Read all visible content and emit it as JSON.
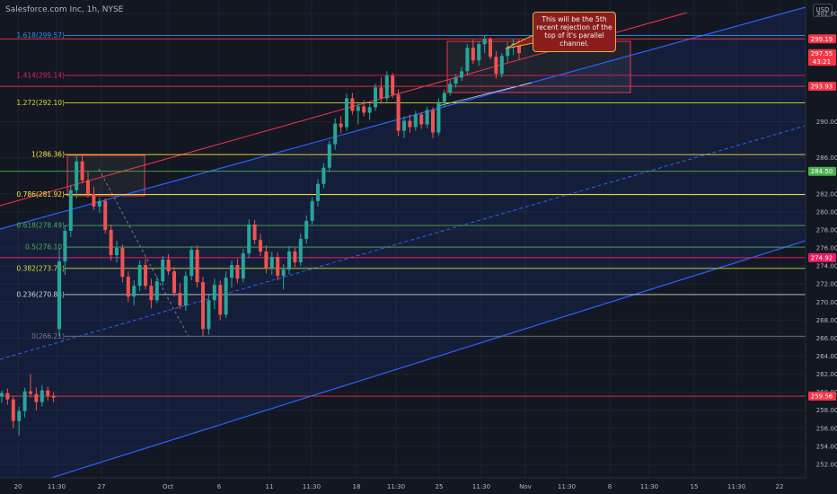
{
  "title": "Salesforce.com Inc, 1h, NYSE",
  "currency": "USD",
  "note": "This will be the 5th recent rejection of the top of it's parallel channel.",
  "colors": {
    "bg": "#131722",
    "grid": "#1e222d",
    "up": "#26a69a",
    "down": "#ef5350",
    "channel_blue": "#2962ff",
    "channel_red": "#f23645",
    "fill_blue": "rgba(41,98,255,0.10)",
    "axis_text": "#b2b5be"
  },
  "chart_data": {
    "type": "candlestick",
    "y_ticks": [
      252,
      254,
      256,
      258,
      260,
      262,
      264,
      266,
      268,
      270,
      272,
      274,
      276,
      278,
      280,
      282,
      286,
      290,
      302
    ],
    "x_ticks": [
      "20",
      "11:30",
      "27",
      "Oct",
      "6",
      "11",
      "11:30",
      "18",
      "11:30",
      "25",
      "11:30",
      "Nov",
      "11:30",
      "8",
      "11:30",
      "15",
      "11:30",
      "22"
    ],
    "ylim": [
      250.5,
      303.5
    ],
    "price_labels": [
      {
        "text": "299.19",
        "value": 299.19,
        "color": "#f23645"
      },
      {
        "text": "297.55",
        "value": 297.55,
        "color": "#f23645"
      },
      {
        "text": "43:21",
        "value": 296.7,
        "color": "#f23645"
      },
      {
        "text": "293.93",
        "value": 293.93,
        "color": "#f23645"
      },
      {
        "text": "284.50",
        "value": 284.5,
        "color": "#4caf50"
      },
      {
        "text": "274.92",
        "value": 274.92,
        "color": "#e91e63"
      },
      {
        "text": "259.56",
        "value": 259.56,
        "color": "#f23645"
      }
    ],
    "fib_levels": [
      {
        "label": "1.618(299.57)",
        "value": 299.57,
        "color": "#2196f3"
      },
      {
        "label": "1.414(295.14)",
        "value": 295.14,
        "color": "#e91e63"
      },
      {
        "label": "1.272(292.10)",
        "value": 292.1,
        "color": "#cddc39"
      },
      {
        "label": "1(286.36)",
        "value": 286.36,
        "color": "#ffeb3b"
      },
      {
        "label": "0.786(281.92)",
        "value": 281.92,
        "color": "#ffeb3b"
      },
      {
        "label": "0.618(278.49)",
        "value": 278.49,
        "color": "#4caf50"
      },
      {
        "label": "0.5(276.10)",
        "value": 276.1,
        "color": "#4caf50"
      },
      {
        "label": "0.382(273.73)",
        "value": 273.73,
        "color": "#cddc39"
      },
      {
        "label": "0.236(270.83)",
        "value": 270.83,
        "color": "#d1d4dc"
      },
      {
        "label": "0(266.21)",
        "value": 266.21,
        "color": "#787b86"
      }
    ],
    "horizontal_levels": [
      {
        "value": 284.5,
        "color": "#4caf50"
      },
      {
        "value": 274.92,
        "color": "#e91e63"
      },
      {
        "value": 259.56,
        "color": "#f23645"
      },
      {
        "value": 293.93,
        "color": "#f23645"
      },
      {
        "value": 299.19,
        "color": "#f23645"
      }
    ],
    "candles": [
      [
        259.5,
        260.2,
        258.8,
        259.9
      ],
      [
        259.9,
        260.4,
        258.6,
        259.2
      ],
      [
        259.2,
        259.6,
        256.0,
        256.8
      ],
      [
        256.8,
        258.4,
        255.2,
        257.9
      ],
      [
        257.9,
        260.5,
        257.2,
        260.1
      ],
      [
        260.1,
        262.0,
        259.4,
        259.8
      ],
      [
        259.8,
        260.5,
        258.0,
        258.9
      ],
      [
        258.9,
        260.8,
        258.4,
        260.2
      ],
      [
        260.2,
        260.6,
        259.1,
        259.6
      ],
      [
        259.6,
        260.0,
        258.9,
        259.4
      ],
      [
        267.0,
        276.0,
        266.2,
        274.5
      ],
      [
        274.5,
        278.5,
        273.0,
        277.9
      ],
      [
        277.9,
        283.0,
        277.2,
        282.4
      ],
      [
        282.4,
        286.4,
        281.5,
        285.6
      ],
      [
        285.6,
        286.3,
        283.2,
        283.5
      ],
      [
        283.5,
        284.5,
        281.6,
        282.0
      ],
      [
        282.0,
        282.8,
        280.2,
        280.6
      ],
      [
        280.6,
        281.6,
        279.9,
        281.2
      ],
      [
        281.2,
        281.5,
        277.6,
        278.0
      ],
      [
        278.0,
        278.6,
        274.6,
        275.2
      ],
      [
        275.2,
        276.8,
        274.4,
        276.0
      ],
      [
        276.0,
        276.4,
        272.2,
        272.8
      ],
      [
        272.8,
        273.4,
        270.0,
        270.6
      ],
      [
        270.6,
        272.4,
        269.6,
        271.8
      ],
      [
        271.8,
        274.6,
        271.2,
        274.1
      ],
      [
        274.1,
        274.8,
        271.4,
        271.8
      ],
      [
        271.8,
        272.6,
        269.3,
        270.2
      ],
      [
        270.2,
        272.9,
        269.9,
        272.3
      ],
      [
        272.3,
        275.1,
        271.8,
        274.7
      ],
      [
        274.7,
        275.3,
        273.0,
        273.4
      ],
      [
        273.4,
        273.9,
        270.6,
        271.0
      ],
      [
        271.0,
        272.1,
        269.2,
        269.6
      ],
      [
        269.6,
        273.4,
        269.0,
        272.9
      ],
      [
        272.9,
        276.2,
        272.4,
        275.8
      ],
      [
        275.8,
        276.3,
        271.6,
        272.2
      ],
      [
        272.2,
        272.8,
        266.2,
        267.0
      ],
      [
        267.0,
        270.8,
        266.4,
        270.2
      ],
      [
        270.2,
        272.6,
        269.2,
        271.9
      ],
      [
        271.9,
        272.4,
        268.0,
        268.6
      ],
      [
        268.6,
        273.4,
        268.2,
        272.7
      ],
      [
        272.7,
        274.6,
        271.6,
        274.1
      ],
      [
        274.1,
        274.8,
        272.1,
        272.6
      ],
      [
        272.6,
        275.9,
        272.2,
        275.4
      ],
      [
        275.4,
        279.2,
        274.9,
        278.6
      ],
      [
        278.6,
        279.1,
        276.4,
        276.9
      ],
      [
        276.9,
        277.6,
        275.1,
        275.6
      ],
      [
        275.6,
        276.3,
        273.2,
        273.8
      ],
      [
        273.8,
        275.6,
        273.0,
        275.0
      ],
      [
        275.0,
        275.5,
        272.4,
        272.9
      ],
      [
        272.9,
        274.2,
        271.4,
        273.6
      ],
      [
        273.6,
        276.2,
        273.1,
        275.6
      ],
      [
        275.6,
        276.0,
        273.9,
        274.4
      ],
      [
        274.4,
        277.6,
        274.0,
        277.0
      ],
      [
        277.0,
        279.6,
        276.5,
        279.0
      ],
      [
        279.0,
        281.6,
        278.6,
        281.2
      ],
      [
        281.2,
        283.6,
        280.6,
        283.1
      ],
      [
        283.1,
        285.4,
        282.6,
        284.9
      ],
      [
        284.9,
        287.9,
        284.4,
        287.5
      ],
      [
        287.5,
        290.4,
        286.9,
        289.8
      ],
      [
        289.8,
        290.6,
        288.7,
        289.4
      ],
      [
        289.4,
        293.1,
        289.0,
        292.6
      ],
      [
        292.6,
        293.2,
        290.8,
        291.2
      ],
      [
        291.2,
        292.2,
        289.7,
        291.7
      ],
      [
        291.7,
        292.4,
        290.6,
        291.0
      ],
      [
        291.0,
        292.1,
        290.2,
        291.6
      ],
      [
        291.6,
        294.2,
        291.2,
        293.8
      ],
      [
        293.8,
        294.9,
        292.0,
        292.6
      ],
      [
        292.6,
        295.6,
        292.2,
        295.1
      ],
      [
        295.1,
        295.4,
        292.6,
        293.0
      ],
      [
        293.0,
        293.6,
        288.4,
        289.0
      ],
      [
        289.0,
        290.6,
        288.2,
        290.1
      ],
      [
        290.1,
        290.8,
        288.8,
        289.4
      ],
      [
        289.4,
        291.2,
        289.0,
        290.8
      ],
      [
        290.8,
        291.1,
        289.2,
        289.7
      ],
      [
        289.7,
        291.7,
        289.3,
        291.3
      ],
      [
        291.3,
        291.6,
        288.2,
        288.8
      ],
      [
        288.8,
        292.6,
        288.5,
        292.2
      ],
      [
        292.2,
        293.6,
        291.6,
        293.2
      ],
      [
        293.2,
        294.6,
        292.9,
        294.2
      ],
      [
        294.2,
        295.3,
        293.8,
        294.9
      ],
      [
        294.9,
        296.1,
        294.5,
        295.6
      ],
      [
        295.6,
        298.6,
        295.2,
        298.2
      ],
      [
        298.2,
        299.1,
        296.4,
        296.8
      ],
      [
        296.8,
        298.9,
        296.2,
        298.6
      ],
      [
        298.6,
        299.6,
        297.6,
        299.2
      ],
      [
        299.2,
        299.4,
        296.9,
        297.2
      ],
      [
        297.2,
        297.8,
        294.8,
        295.3
      ],
      [
        295.3,
        297.6,
        294.9,
        297.3
      ],
      [
        297.3,
        298.8,
        296.6,
        298.2
      ],
      [
        298.2,
        299.2,
        297.4,
        298.7
      ],
      [
        298.7,
        299.1,
        296.9,
        297.6
      ]
    ]
  }
}
